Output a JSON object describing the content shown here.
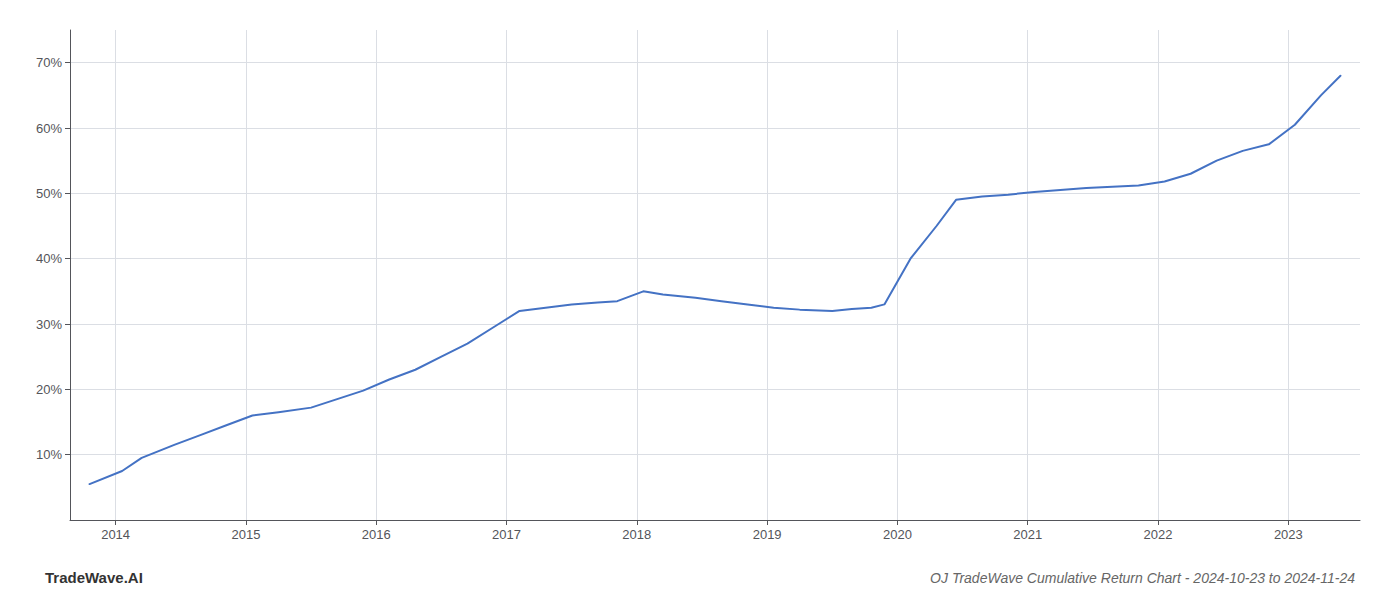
{
  "chart_data": {
    "type": "line",
    "title": "OJ TradeWave Cumulative Return Chart - 2024-10-23 to 2024-11-24",
    "annotations": [
      "TradeWave.AI"
    ],
    "x": [
      2013.8,
      2014.05,
      2014.2,
      2014.45,
      2014.65,
      2014.85,
      2015.05,
      2015.25,
      2015.5,
      2015.7,
      2015.9,
      2016.1,
      2016.3,
      2016.5,
      2016.7,
      2016.9,
      2017.1,
      2017.3,
      2017.5,
      2017.7,
      2017.85,
      2018.05,
      2018.2,
      2018.45,
      2018.65,
      2018.85,
      2019.05,
      2019.25,
      2019.5,
      2019.65,
      2019.8,
      2019.9,
      2020.1,
      2020.3,
      2020.45,
      2020.65,
      2020.85,
      2021.05,
      2021.25,
      2021.45,
      2021.65,
      2021.85,
      2022.05,
      2022.25,
      2022.45,
      2022.65,
      2022.85,
      2023.05,
      2023.25,
      2023.4
    ],
    "values": [
      5.5,
      7.5,
      9.5,
      11.5,
      13.0,
      14.5,
      16.0,
      16.5,
      17.2,
      18.5,
      19.8,
      21.5,
      23.0,
      25.0,
      27.0,
      29.5,
      32.0,
      32.5,
      33.0,
      33.3,
      33.5,
      35.0,
      34.5,
      34.0,
      33.5,
      33.0,
      32.5,
      32.2,
      32.0,
      32.3,
      32.5,
      33.0,
      40.0,
      45.0,
      49.0,
      49.5,
      49.8,
      50.2,
      50.5,
      50.8,
      51.0,
      51.2,
      51.8,
      53.0,
      55.0,
      56.5,
      57.5,
      60.5,
      65.0,
      68.0
    ],
    "color": "#4472c4",
    "xlim": [
      2013.65,
      2023.55
    ],
    "xticks": [
      2014,
      2015,
      2016,
      2017,
      2018,
      2019,
      2020,
      2021,
      2022,
      2023
    ],
    "ylim": [
      0,
      75
    ],
    "yticks": [
      {
        "value": 10,
        "label": "10%"
      },
      {
        "value": 20,
        "label": "20%"
      },
      {
        "value": 30,
        "label": "30%"
      },
      {
        "value": 40,
        "label": "40%"
      },
      {
        "value": 50,
        "label": "50%"
      },
      {
        "value": 60,
        "label": "60%"
      },
      {
        "value": 70,
        "label": "70%"
      }
    ],
    "grid": true
  }
}
